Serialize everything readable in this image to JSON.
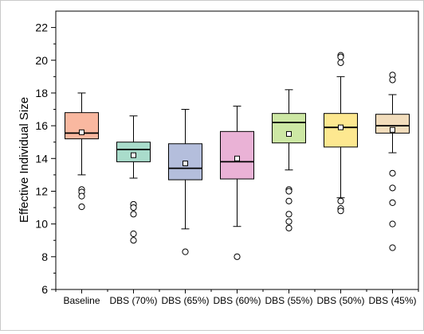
{
  "chart_data": {
    "type": "box",
    "title": "",
    "xlabel": "",
    "ylabel": "Effective Individual Size",
    "ylim": [
      6,
      23
    ],
    "yticks": [
      6,
      8,
      10,
      12,
      14,
      16,
      18,
      20,
      22
    ],
    "grid": false,
    "legend": "none",
    "categories": [
      "Baseline",
      "DBS (70%)",
      "DBS (65%)",
      "DBS (60%)",
      "DBS (55%)",
      "DBS (50%)",
      "DBS (45%)"
    ],
    "boxes": [
      {
        "category": "Baseline",
        "color": "#F9B8A0",
        "whisker_low": 13.0,
        "q1": 15.2,
        "median": 15.55,
        "q3": 16.8,
        "whisker_high": 18.0,
        "mean": 15.6,
        "outliers": [
          12.1,
          11.95,
          11.7,
          11.05
        ]
      },
      {
        "category": "DBS (70%)",
        "color": "#A9DCCB",
        "whisker_low": 12.8,
        "q1": 13.8,
        "median": 14.55,
        "q3": 15.0,
        "whisker_high": 16.6,
        "mean": 14.2,
        "outliers": [
          11.2,
          11.0,
          10.6,
          9.4,
          9.0
        ]
      },
      {
        "category": "DBS (65%)",
        "color": "#B4BEDC",
        "whisker_low": 9.7,
        "q1": 12.7,
        "median": 13.4,
        "q3": 14.9,
        "whisker_high": 17.0,
        "mean": 13.7,
        "outliers": [
          8.3
        ]
      },
      {
        "category": "DBS (60%)",
        "color": "#EAB2D6",
        "whisker_low": 9.85,
        "q1": 12.75,
        "median": 13.8,
        "q3": 15.65,
        "whisker_high": 17.2,
        "mean": 14.0,
        "outliers": [
          8.0
        ]
      },
      {
        "category": "DBS (55%)",
        "color": "#CDE8A4",
        "whisker_low": 13.3,
        "q1": 14.95,
        "median": 16.2,
        "q3": 16.75,
        "whisker_high": 18.2,
        "mean": 15.5,
        "outliers": [
          12.1,
          12.0,
          11.4,
          10.6,
          10.15,
          9.75
        ]
      },
      {
        "category": "DBS (50%)",
        "color": "#FDE890",
        "whisker_low": 11.6,
        "q1": 14.7,
        "median": 15.9,
        "q3": 16.75,
        "whisker_high": 19.0,
        "mean": 15.9,
        "outliers": [
          20.3,
          20.2,
          19.85,
          11.4,
          10.95,
          10.8
        ]
      },
      {
        "category": "DBS (45%)",
        "color": "#F2DDBC",
        "whisker_low": 14.35,
        "q1": 15.55,
        "median": 16.0,
        "q3": 16.7,
        "whisker_high": 17.9,
        "mean": 15.75,
        "outliers": [
          19.1,
          18.8,
          13.1,
          12.2,
          11.3,
          10.0,
          8.55
        ]
      }
    ]
  }
}
